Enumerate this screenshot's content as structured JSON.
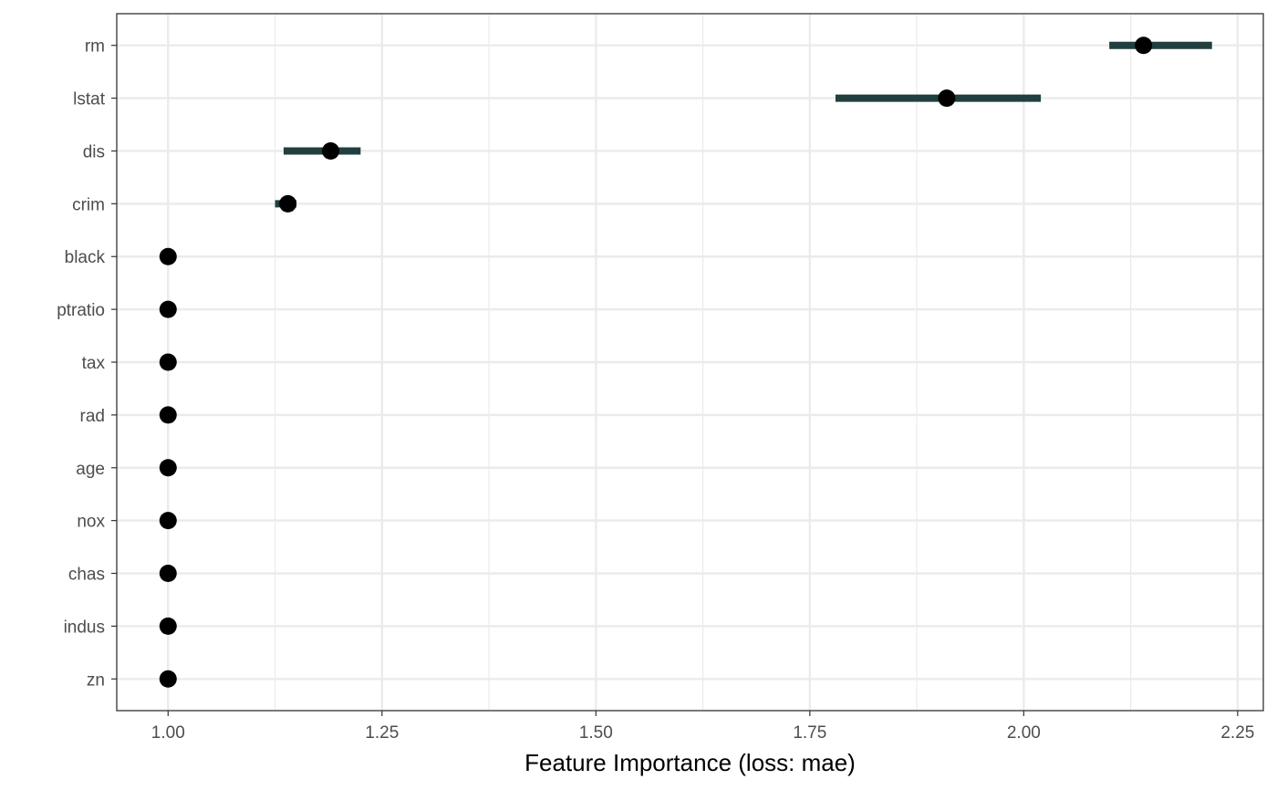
{
  "chart_data": {
    "type": "scatter",
    "title": "",
    "xlabel": "Feature Importance (loss: mae)",
    "ylabel": "",
    "xlim": [
      0.94,
      2.28
    ],
    "x_ticks": [
      1.0,
      1.25,
      1.5,
      1.75,
      2.0,
      2.25
    ],
    "x_tick_labels": [
      "1.00",
      "1.25",
      "1.50",
      "1.75",
      "2.00",
      "2.25"
    ],
    "grid": true,
    "legend": "none",
    "categories": [
      "rm",
      "lstat",
      "dis",
      "crim",
      "black",
      "ptratio",
      "tax",
      "rad",
      "age",
      "nox",
      "chas",
      "indus",
      "zn"
    ],
    "points": [
      {
        "feature": "rm",
        "value": 2.14,
        "low": 2.1,
        "high": 2.22
      },
      {
        "feature": "lstat",
        "value": 1.91,
        "low": 1.78,
        "high": 2.02
      },
      {
        "feature": "dis",
        "value": 1.19,
        "low": 1.135,
        "high": 1.225
      },
      {
        "feature": "crim",
        "value": 1.14,
        "low": 1.125,
        "high": 1.15
      },
      {
        "feature": "black",
        "value": 1.0,
        "low": 1.0,
        "high": 1.0
      },
      {
        "feature": "ptratio",
        "value": 1.0,
        "low": 1.0,
        "high": 1.0
      },
      {
        "feature": "tax",
        "value": 1.0,
        "low": 1.0,
        "high": 1.0
      },
      {
        "feature": "rad",
        "value": 1.0,
        "low": 1.0,
        "high": 1.0
      },
      {
        "feature": "age",
        "value": 1.0,
        "low": 1.0,
        "high": 1.0
      },
      {
        "feature": "nox",
        "value": 1.0,
        "low": 1.0,
        "high": 1.0
      },
      {
        "feature": "chas",
        "value": 1.0,
        "low": 1.0,
        "high": 1.0
      },
      {
        "feature": "indus",
        "value": 1.0,
        "low": 1.0,
        "high": 1.0
      },
      {
        "feature": "zn",
        "value": 1.0,
        "low": 1.0,
        "high": 1.0
      }
    ],
    "colors": {
      "point": "#000000",
      "interval": "#213f3f",
      "grid": "#ebebeb",
      "panel_border": "#333333",
      "tick_text": "#4d4d4d",
      "axis_title": "#000000"
    }
  }
}
